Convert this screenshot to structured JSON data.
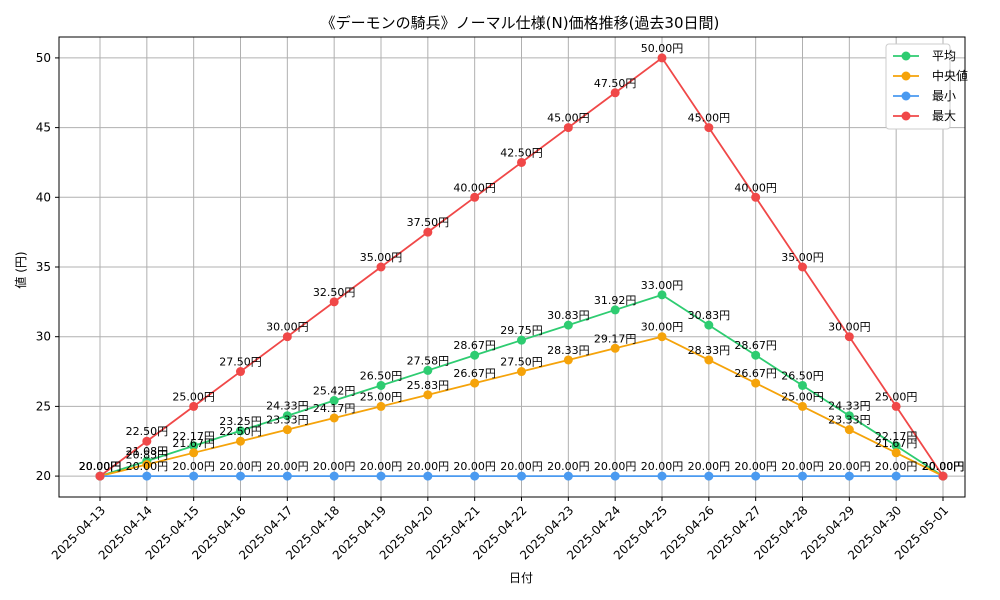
{
  "chart_data": {
    "type": "line",
    "title": "《デーモンの騎兵》ノーマル仕様(N)価格推移(過去30日間)",
    "xlabel": "日付",
    "ylabel": "値 (円)",
    "categories": [
      "2025-04-13",
      "2025-04-14",
      "2025-04-15",
      "2025-04-16",
      "2025-04-17",
      "2025-04-18",
      "2025-04-19",
      "2025-04-20",
      "2025-04-21",
      "2025-04-22",
      "2025-04-23",
      "2025-04-24",
      "2025-04-25",
      "2025-04-26",
      "2025-04-27",
      "2025-04-28",
      "2025-04-29",
      "2025-04-30",
      "2025-05-01"
    ],
    "ylim": [
      18.5,
      51.5
    ],
    "yticks": [
      20,
      25,
      30,
      35,
      40,
      45,
      50
    ],
    "grid": true,
    "legend_position": "top-right",
    "value_suffix": "円",
    "series": [
      {
        "name": "平均",
        "color": "#2ecc71",
        "values": [
          20.0,
          21.08,
          22.17,
          23.25,
          24.33,
          25.42,
          26.5,
          27.58,
          28.67,
          29.75,
          30.83,
          31.92,
          33.0,
          30.83,
          28.67,
          26.5,
          24.33,
          22.17,
          20.0
        ],
        "labels": [
          "20.00円",
          "21.08円",
          "22.17円",
          "23.25円",
          "24.33円",
          "25.42円",
          "26.50円",
          "27.58円",
          "28.67円",
          "29.75円",
          "30.83円",
          "31.92円",
          "33.00円",
          "30.83円",
          "28.67円",
          "26.50円",
          "24.33円",
          "22.17円",
          "20.00円"
        ]
      },
      {
        "name": "中央値",
        "color": "#f5a30a",
        "values": [
          20.0,
          20.83,
          21.67,
          22.5,
          23.33,
          24.17,
          25.0,
          25.83,
          26.67,
          27.5,
          28.33,
          29.17,
          30.0,
          28.33,
          26.67,
          25.0,
          23.33,
          21.67,
          20.0
        ],
        "labels": [
          "20.00円",
          "20.83円",
          "21.67円",
          "22.50円",
          "23.33円",
          "24.17円",
          "25.00円",
          "25.83円",
          "26.67円",
          "27.50円",
          "28.33円",
          "29.17円",
          "30.00円",
          "28.33円",
          "26.67円",
          "25.00円",
          "23.33円",
          "21.67円",
          "20.00円"
        ]
      },
      {
        "name": "最小",
        "color": "#4a9af0",
        "values": [
          20,
          20,
          20,
          20,
          20,
          20,
          20,
          20,
          20,
          20,
          20,
          20,
          20,
          20,
          20,
          20,
          20,
          20,
          20
        ],
        "labels": [
          "20.00円",
          "20.00円",
          "20.00円",
          "20.00円",
          "20.00円",
          "20.00円",
          "20.00円",
          "20.00円",
          "20.00円",
          "20.00円",
          "20.00円",
          "20.00円",
          "20.00円",
          "20.00円",
          "20.00円",
          "20.00円",
          "20.00円",
          "20.00円",
          "20.00円"
        ]
      },
      {
        "name": "最大",
        "color": "#f04848",
        "values": [
          20.0,
          22.5,
          25.0,
          27.5,
          30.0,
          32.5,
          35.0,
          37.5,
          40.0,
          42.5,
          45.0,
          47.5,
          50.0,
          45.0,
          40.0,
          35.0,
          30.0,
          25.0,
          20.0
        ],
        "labels": [
          "20.00円",
          "22.50円",
          "25.00円",
          "27.50円",
          "30.00円",
          "32.50円",
          "35.00円",
          "37.50円",
          "40.00円",
          "42.50円",
          "45.00円",
          "47.50円",
          "50.00円",
          "45.00円",
          "40.00円",
          "35.00円",
          "30.00円",
          "25.00円",
          "20.00円"
        ]
      }
    ]
  }
}
